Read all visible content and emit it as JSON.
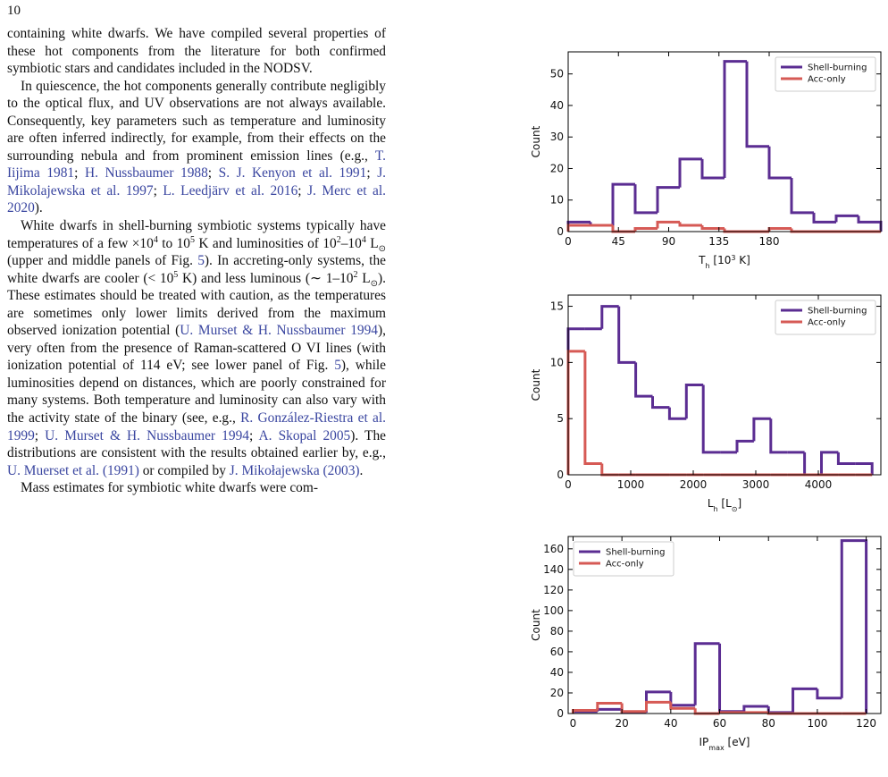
{
  "page_number": "10",
  "paragraphs": [
    [
      {
        "text": "containing white dwarfs. We have compiled several properties of these hot components from the literature for both confirmed symbiotic stars and candidates included in the NODSV."
      }
    ],
    [
      {
        "text": "In quiescence, the hot components generally contribute negligibly to the optical flux, and UV observations are not always available. Consequently, key parameters such as temperature and luminosity are often inferred indirectly, for example, from their effects on the surrounding nebula and from prominent emission lines (e.g., "
      },
      {
        "text": "T. Iijima 1981",
        "style": "cite"
      },
      {
        "text": "; "
      },
      {
        "text": "H. Nussbaumer 1988",
        "style": "cite"
      },
      {
        "text": "; "
      },
      {
        "text": "S. J. Kenyon et al. 1991",
        "style": "cite"
      },
      {
        "text": "; "
      },
      {
        "text": "J. Mikolajewska et al. 1997",
        "style": "cite"
      },
      {
        "text": "; "
      },
      {
        "text": "L. Leedjärv et al. 2016",
        "style": "cite"
      },
      {
        "text": "; "
      },
      {
        "text": "J. Merc et al. 2020",
        "style": "cite"
      },
      {
        "text": ")."
      }
    ],
    [
      {
        "text": "White dwarfs in shell-burning symbiotic systems typically have temperatures of a few ×10"
      },
      {
        "text": "4",
        "style": "sup"
      },
      {
        "text": " to 10"
      },
      {
        "text": "5",
        "style": "sup"
      },
      {
        "text": " K and luminosities of 10"
      },
      {
        "text": "2",
        "style": "sup"
      },
      {
        "text": "–10"
      },
      {
        "text": "4",
        "style": "sup"
      },
      {
        "text": " L"
      },
      {
        "text": "⊙",
        "style": "sub"
      },
      {
        "text": " (upper and middle panels of Fig. "
      },
      {
        "text": "5",
        "style": "cite"
      },
      {
        "text": "). In accreting-only systems, the white dwarfs are cooler (< 10"
      },
      {
        "text": "5",
        "style": "sup"
      },
      {
        "text": " K) and less luminous (∼ 1–10"
      },
      {
        "text": "2",
        "style": "sup"
      },
      {
        "text": " L"
      },
      {
        "text": "⊙",
        "style": "sub"
      },
      {
        "text": "). These estimates should be treated with caution, as the temperatures are sometimes only lower limits derived from the maximum observed ionization potential ("
      },
      {
        "text": "U. Murset & H. Nussbaumer 1994",
        "style": "cite"
      },
      {
        "text": "), very often from the presence of Raman-scattered O VI lines (with ionization potential of 114 eV; see lower panel of Fig. "
      },
      {
        "text": "5",
        "style": "cite"
      },
      {
        "text": "), while luminosities depend on distances, which are poorly constrained for many systems. Both temperature and luminosity can also vary with the activity state of the binary (see, e.g., "
      },
      {
        "text": "R. González-Riestra et al. 1999",
        "style": "cite"
      },
      {
        "text": "; "
      },
      {
        "text": "U. Murset & H. Nussbaumer 1994",
        "style": "cite"
      },
      {
        "text": "; "
      },
      {
        "text": "A. Skopal 2005",
        "style": "cite"
      },
      {
        "text": "). The distributions are consistent with the results obtained earlier by, e.g., "
      },
      {
        "text": "U. Muerset et al. (1991)",
        "style": "cite"
      },
      {
        "text": " or compiled by "
      },
      {
        "text": "J. Mikołajewska (2003)",
        "style": "cite"
      },
      {
        "text": "."
      }
    ],
    [
      {
        "text": "Mass estimates for symbiotic white dwarfs were com-"
      }
    ]
  ],
  "chart_data": [
    {
      "type": "histogram",
      "ylabel": "Count",
      "xlabel": [
        {
          "text": "T"
        },
        {
          "text": "h",
          "style": "sub"
        },
        {
          "text": " [10"
        },
        {
          "text": "3",
          "style": "sup"
        },
        {
          "text": " K]"
        }
      ],
      "bins": [
        0,
        20,
        40,
        60,
        80,
        100,
        120,
        140,
        160,
        180,
        200,
        220,
        240,
        260,
        280
      ],
      "series": [
        {
          "name": "Shell-burning",
          "color": "#5b2d92",
          "values": [
            3,
            2,
            15,
            6,
            14,
            23,
            17,
            54,
            27,
            17,
            6,
            3,
            5,
            3
          ]
        },
        {
          "name": "Acc-only",
          "color": "#d65a55",
          "values": [
            2,
            2,
            0,
            1,
            3,
            2,
            1,
            0,
            0,
            1,
            0,
            0,
            0,
            0
          ]
        }
      ],
      "xlim": [
        0,
        280
      ],
      "xticks": [
        0,
        45,
        90,
        135,
        180
      ],
      "ylim": [
        0,
        57
      ],
      "yticks": [
        0,
        10,
        20,
        30,
        40,
        50
      ],
      "legend": "upper right"
    },
    {
      "type": "histogram",
      "ylabel": "Count",
      "xlabel": [
        {
          "text": "L"
        },
        {
          "text": "h",
          "style": "sub"
        },
        {
          "text": " [L"
        },
        {
          "text": "⊙",
          "style": "sub"
        },
        {
          "text": "]"
        }
      ],
      "bins": [
        0,
        270,
        540,
        810,
        1080,
        1350,
        1620,
        1890,
        2160,
        2430,
        2700,
        2970,
        3240,
        3510,
        3780,
        4050,
        4320,
        4590,
        4860
      ],
      "series": [
        {
          "name": "Shell-burning",
          "color": "#5b2d92",
          "values": [
            13,
            13,
            15,
            10,
            7,
            6,
            5,
            8,
            2,
            2,
            3,
            5,
            2,
            2,
            0,
            2,
            1,
            1
          ]
        },
        {
          "name": "Acc-only",
          "color": "#d65a55",
          "values": [
            11,
            1,
            0,
            0,
            0,
            0,
            0,
            0,
            0,
            0,
            0,
            0,
            0,
            0,
            0,
            0,
            0,
            0
          ]
        }
      ],
      "xlim": [
        0,
        5000
      ],
      "xticks": [
        0,
        1000,
        2000,
        3000,
        4000
      ],
      "ylim": [
        0,
        16
      ],
      "yticks": [
        0,
        5,
        10,
        15
      ],
      "legend": "upper right"
    },
    {
      "type": "histogram",
      "ylabel": "Count",
      "xlabel": [
        {
          "text": "IP"
        },
        {
          "text": "max",
          "style": "sub"
        },
        {
          "text": " [eV]"
        }
      ],
      "bins": [
        0,
        10,
        20,
        30,
        40,
        50,
        60,
        70,
        80,
        90,
        100,
        110,
        120
      ],
      "series": [
        {
          "name": "Shell-burning",
          "color": "#5b2d92",
          "values": [
            2,
            4,
            1,
            21,
            8,
            68,
            2,
            7,
            1,
            24,
            15,
            168
          ]
        },
        {
          "name": "Acc-only",
          "color": "#d65a55",
          "values": [
            3,
            10,
            2,
            11,
            5,
            0,
            1,
            1,
            0,
            0,
            0,
            0
          ]
        }
      ],
      "xlim": [
        -2,
        126
      ],
      "xticks": [
        0,
        20,
        40,
        60,
        80,
        100,
        120
      ],
      "ylim": [
        0,
        172
      ],
      "yticks": [
        0,
        20,
        40,
        60,
        80,
        100,
        120,
        140,
        160
      ],
      "legend": "upper left"
    }
  ]
}
